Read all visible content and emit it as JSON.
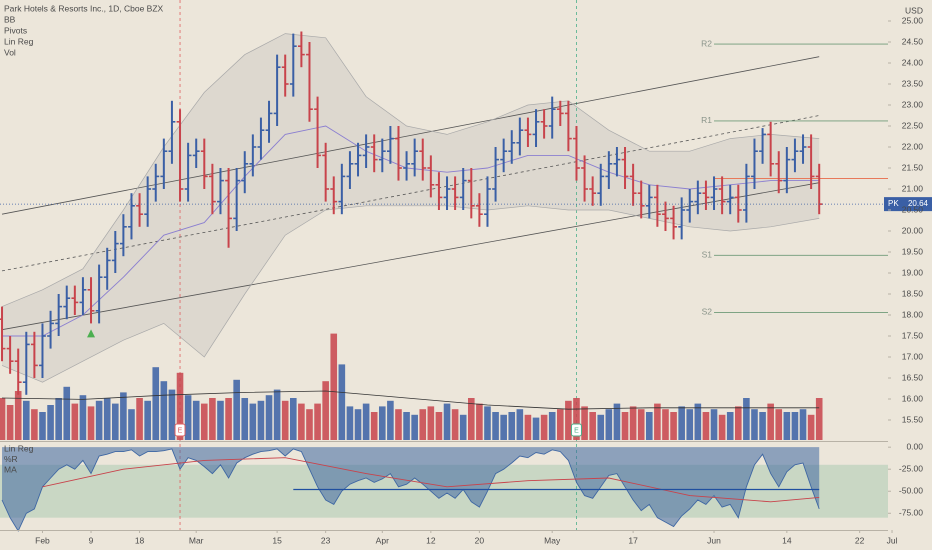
{
  "chart_data": {
    "type": "ohlc",
    "title": "Park Hotels & Resorts Inc., 1D, Cboe BZX",
    "indicators": [
      "BB",
      "Pivots",
      "Lin Reg",
      "Vol"
    ],
    "currency": "USD",
    "symbol_tag": "PK",
    "up_color": "#3a5fa5",
    "down_color": "#c8434b",
    "xlim": [
      -0.25,
      109.75
    ],
    "xticks": [
      {
        "value": 5,
        "label": "Feb"
      },
      {
        "value": 11,
        "label": "9"
      },
      {
        "value": 17,
        "label": "18"
      },
      {
        "value": 24,
        "label": "Mar"
      },
      {
        "value": 34,
        "label": "15"
      },
      {
        "value": 40,
        "label": "23"
      },
      {
        "value": 47,
        "label": "Apr"
      },
      {
        "value": 53,
        "label": "12"
      },
      {
        "value": 59,
        "label": "20"
      },
      {
        "value": 68,
        "label": "May"
      },
      {
        "value": 78,
        "label": "17"
      },
      {
        "value": 88,
        "label": "Jun"
      },
      {
        "value": 97,
        "label": "14"
      },
      {
        "value": 106,
        "label": "22"
      },
      {
        "value": 110,
        "label": "Jul"
      }
    ],
    "ylim": [
      15,
      25.5
    ],
    "yticks": [
      {
        "value": 25,
        "label": "25.00"
      },
      {
        "value": 24.5,
        "label": "24.50"
      },
      {
        "value": 24,
        "label": "24.00"
      },
      {
        "value": 23.5,
        "label": "23.50"
      },
      {
        "value": 23,
        "label": "23.00"
      },
      {
        "value": 22.5,
        "label": "22.50"
      },
      {
        "value": 22,
        "label": "22.00"
      },
      {
        "value": 21.5,
        "label": "21.50"
      },
      {
        "value": 21,
        "label": "21.00"
      },
      {
        "value": 20.5,
        "label": "20.50"
      },
      {
        "value": 20,
        "label": "20.00"
      },
      {
        "value": 19.5,
        "label": "19.50"
      },
      {
        "value": 19,
        "label": "19.00"
      },
      {
        "value": 18.5,
        "label": "18.50"
      },
      {
        "value": 18,
        "label": "18.00"
      },
      {
        "value": 17.5,
        "label": "17.50"
      },
      {
        "value": 17,
        "label": "17.00"
      },
      {
        "value": 16.5,
        "label": "16.50"
      },
      {
        "value": 16,
        "label": "16.00"
      },
      {
        "value": 15.5,
        "label": "15.50"
      }
    ],
    "open": [
      17.9,
      17.2,
      16.9,
      16.4,
      17.3,
      16.8,
      17.5,
      17.8,
      18.2,
      18.4,
      18.3,
      18.6,
      18.1,
      18.9,
      19.3,
      19.7,
      20.1,
      20.6,
      20.4,
      21.0,
      21.3,
      21.9,
      22.6,
      21.0,
      21.8,
      21.9,
      21.3,
      20.7,
      21.2,
      20.3,
      21.2,
      21.6,
      22.0,
      22.4,
      22.8,
      23.9,
      23.5,
      24.4,
      24.2,
      22.9,
      21.8,
      21.0,
      20.7,
      21.3,
      21.6,
      21.8,
      22.0,
      21.7,
      21.9,
      22.2,
      21.5,
      21.6,
      21.9,
      21.5,
      21.1,
      20.8,
      21.0,
      20.8,
      21.2,
      20.6,
      20.4,
      21.0,
      21.7,
      21.9,
      22.1,
      22.4,
      22.3,
      22.6,
      22.5,
      22.9,
      22.8,
      22.2,
      21.5,
      21.0,
      20.9,
      21.3,
      21.6,
      21.7,
      21.3,
      20.9,
      20.6,
      20.8,
      20.4,
      20.3,
      20.1,
      20.5,
      20.7,
      20.9,
      20.8,
      21.0,
      20.7,
      20.8,
      20.5,
      21.3,
      21.9,
      22.3,
      21.6,
      21.2,
      21.7,
      21.9,
      22.0,
      21.3
    ],
    "high": [
      18.2,
      17.5,
      17.2,
      17.6,
      17.6,
      17.8,
      18.1,
      18.5,
      18.7,
      18.7,
      18.9,
      18.9,
      19.2,
      19.6,
      20.0,
      20.4,
      20.9,
      20.9,
      21.3,
      21.6,
      22.2,
      23.1,
      22.9,
      22.1,
      22.2,
      22.2,
      21.6,
      21.5,
      21.5,
      21.5,
      21.9,
      22.3,
      22.7,
      23.1,
      24.2,
      24.2,
      24.7,
      24.75,
      24.5,
      23.2,
      22.1,
      21.3,
      21.6,
      21.9,
      22.1,
      22.3,
      22.3,
      22.2,
      22.5,
      22.5,
      21.9,
      22.2,
      22.2,
      21.8,
      21.4,
      21.3,
      21.3,
      21.5,
      21.5,
      20.9,
      21.3,
      22.0,
      22.2,
      22.4,
      22.7,
      22.7,
      22.9,
      22.9,
      23.2,
      23.1,
      23.1,
      22.5,
      21.8,
      21.3,
      21.6,
      21.9,
      22.0,
      22.0,
      21.6,
      21.2,
      21.1,
      21.1,
      20.7,
      20.6,
      20.8,
      21.0,
      21.2,
      21.2,
      21.3,
      21.3,
      21.1,
      21.1,
      21.6,
      22.2,
      22.45,
      22.6,
      21.9,
      22.0,
      22.2,
      22.3,
      22.3,
      21.6
    ],
    "low": [
      16.9,
      16.6,
      16.1,
      16.1,
      16.5,
      16.5,
      17.2,
      17.5,
      17.9,
      18.0,
      18.0,
      17.8,
      17.8,
      18.6,
      19.0,
      19.4,
      19.8,
      20.1,
      20.1,
      20.7,
      21.0,
      21.6,
      20.7,
      20.7,
      21.5,
      21.0,
      20.4,
      20.4,
      19.6,
      20.0,
      20.9,
      21.3,
      21.7,
      22.1,
      22.5,
      23.2,
      23.2,
      23.9,
      22.6,
      21.5,
      20.7,
      20.4,
      20.4,
      21.0,
      21.3,
      21.5,
      21.4,
      21.4,
      21.6,
      21.2,
      21.2,
      21.3,
      21.2,
      20.8,
      20.5,
      20.5,
      20.5,
      20.5,
      20.3,
      20.1,
      20.1,
      20.7,
      21.4,
      21.6,
      21.8,
      22.0,
      22.0,
      22.2,
      22.2,
      22.5,
      21.9,
      21.2,
      20.7,
      20.6,
      20.6,
      21.0,
      21.3,
      21.0,
      20.6,
      20.3,
      20.3,
      20.1,
      20.0,
      19.8,
      19.8,
      20.2,
      20.4,
      20.5,
      20.5,
      20.4,
      20.4,
      20.2,
      20.2,
      21.0,
      21.6,
      21.3,
      20.9,
      20.9,
      21.4,
      21.6,
      21.0,
      20.4
    ],
    "close": [
      17.2,
      16.9,
      16.4,
      17.3,
      16.8,
      17.5,
      17.8,
      18.2,
      18.4,
      18.3,
      18.6,
      18.1,
      18.9,
      19.3,
      19.7,
      20.1,
      20.6,
      20.4,
      21.0,
      21.3,
      21.9,
      22.6,
      21.0,
      21.8,
      21.9,
      21.3,
      20.7,
      21.2,
      20.3,
      21.2,
      21.6,
      22.0,
      22.4,
      22.8,
      23.9,
      23.5,
      24.4,
      24.2,
      22.9,
      21.8,
      21.0,
      20.7,
      21.3,
      21.6,
      21.8,
      22.0,
      21.7,
      21.9,
      22.2,
      21.5,
      21.6,
      21.9,
      21.5,
      21.1,
      20.8,
      21.0,
      20.8,
      21.2,
      20.6,
      20.4,
      21.0,
      21.7,
      21.9,
      22.1,
      22.4,
      22.3,
      22.6,
      22.5,
      22.9,
      22.8,
      22.2,
      21.5,
      21.0,
      20.9,
      21.3,
      21.6,
      21.7,
      21.3,
      20.9,
      20.6,
      20.8,
      20.4,
      20.3,
      20.1,
      20.5,
      20.7,
      20.9,
      20.8,
      21.0,
      20.7,
      20.8,
      20.5,
      21.3,
      21.9,
      22.3,
      21.6,
      21.2,
      21.7,
      21.9,
      22.0,
      21.3,
      20.64
    ],
    "volume": {
      "ylim": [
        0,
        10
      ],
      "values": [
        3.0,
        2.5,
        3.5,
        2.8,
        2.2,
        2.0,
        2.5,
        3.0,
        3.8,
        2.6,
        3.2,
        2.4,
        2.8,
        3.0,
        2.6,
        3.4,
        2.2,
        3.0,
        2.8,
        5.2,
        4.2,
        3.6,
        4.8,
        3.2,
        2.8,
        2.6,
        3.0,
        2.8,
        3.0,
        4.3,
        3.0,
        2.6,
        2.8,
        3.2,
        3.6,
        2.8,
        3.0,
        2.6,
        2.2,
        2.6,
        4.2,
        7.6,
        5.4,
        2.4,
        2.2,
        2.6,
        2.0,
        2.4,
        2.8,
        2.2,
        2.0,
        1.8,
        2.2,
        2.4,
        2.0,
        2.6,
        2.2,
        1.8,
        3.0,
        2.6,
        2.4,
        2.0,
        1.8,
        2.0,
        2.2,
        1.8,
        1.6,
        1.8,
        2.0,
        2.2,
        2.8,
        3.0,
        2.4,
        2.0,
        1.8,
        2.2,
        2.6,
        2.0,
        2.4,
        2.2,
        2.0,
        2.6,
        2.2,
        2.0,
        2.4,
        2.2,
        2.6,
        2.0,
        2.2,
        1.8,
        2.0,
        2.4,
        3.0,
        2.2,
        2.0,
        2.6,
        2.2,
        2.0,
        2.0,
        2.2,
        1.8,
        3.0
      ],
      "ma": {
        "x": [
          0,
          10,
          20,
          30,
          40,
          50,
          60,
          70,
          80,
          90,
          101
        ],
        "values": [
          3.0,
          2.9,
          3.2,
          3.4,
          3.5,
          3.0,
          2.5,
          2.2,
          2.3,
          2.3,
          2.3
        ],
        "color": "#333333"
      }
    },
    "bb": {
      "x": [
        0,
        5,
        10,
        15,
        20,
        25,
        30,
        35,
        40,
        45,
        50,
        55,
        60,
        65,
        70,
        75,
        80,
        85,
        90,
        95,
        101
      ],
      "upper": [
        18.2,
        18.6,
        19.1,
        20.5,
        22.0,
        23.3,
        24.2,
        24.7,
        24.6,
        23.2,
        22.5,
        22.3,
        22.6,
        23.0,
        23.1,
        22.4,
        21.9,
        21.9,
        22.2,
        22.3,
        22.2
      ],
      "basis": [
        17.5,
        17.5,
        18.0,
        18.9,
        19.9,
        20.2,
        21.3,
        22.3,
        22.5,
        21.9,
        21.5,
        21.4,
        21.5,
        21.8,
        21.8,
        21.4,
        21.1,
        21.0,
        21.1,
        21.2,
        21.2
      ],
      "lower": [
        16.8,
        16.4,
        16.9,
        17.4,
        17.8,
        17.0,
        18.5,
        19.9,
        20.5,
        20.6,
        20.6,
        20.6,
        20.5,
        20.6,
        20.5,
        20.5,
        20.3,
        20.1,
        20.0,
        20.1,
        20.3
      ],
      "band_color": "#a9a9a9",
      "basis_color": "#8b7fd0"
    },
    "lin_reg": {
      "x": [
        0,
        101
      ],
      "upper": [
        20.4,
        24.15
      ],
      "middle": [
        19.05,
        22.75
      ],
      "lower": [
        17.65,
        21.15
      ],
      "color": "#555555"
    },
    "pivots_from": 88,
    "pivots": [
      {
        "label": "R2",
        "value": 24.45
      },
      {
        "label": "R1",
        "value": 22.62
      },
      {
        "label": "S1",
        "value": 19.42
      },
      {
        "label": "S2",
        "value": 18.06
      }
    ],
    "pivot_color": "#6f9a78",
    "level": 21.25,
    "level_color": "#e8795a",
    "events": [
      {
        "index": 22,
        "label": "E",
        "color": "#e06060"
      },
      {
        "index": 71,
        "label": "E",
        "color": "#4caf8a"
      }
    ],
    "signals": [
      11
    ],
    "signal_color": "#4caf50",
    "oscillator": {
      "labels": [
        "Lin Reg",
        "%R",
        "MA"
      ],
      "ylim": [
        -94,
        7
      ],
      "yticks": [
        {
          "value": 0,
          "label": "0.00"
        },
        {
          "value": -25,
          "label": "-25.00"
        },
        {
          "value": -50,
          "label": "-50.00"
        },
        {
          "value": -75,
          "label": "-75.00"
        }
      ],
      "band": [
        -80,
        -20
      ],
      "values": [
        -60,
        -80,
        -95,
        -75,
        -70,
        -45,
        -35,
        -25,
        -20,
        -25,
        -15,
        -30,
        -10,
        -8,
        -5,
        -5,
        -3,
        -10,
        -5,
        -5,
        -4,
        -2,
        -25,
        -12,
        -15,
        -22,
        -30,
        -20,
        -35,
        -18,
        -12,
        -8,
        -5,
        -4,
        -2,
        -10,
        -2,
        -5,
        -25,
        -45,
        -60,
        -65,
        -50,
        -42,
        -38,
        -35,
        -40,
        -36,
        -30,
        -45,
        -42,
        -35,
        -42,
        -50,
        -58,
        -52,
        -58,
        -48,
        -62,
        -68,
        -50,
        -30,
        -25,
        -18,
        -10,
        -12,
        -6,
        -8,
        -3,
        -5,
        -15,
        -40,
        -55,
        -58,
        -45,
        -32,
        -30,
        -45,
        -60,
        -72,
        -65,
        -80,
        -85,
        -90,
        -78,
        -70,
        -60,
        -65,
        -55,
        -68,
        -65,
        -80,
        -45,
        -20,
        -8,
        -30,
        -45,
        -28,
        -20,
        -18,
        -45,
        -70
      ],
      "color": "#3f67a3",
      "ma": {
        "x": [
          5,
          15,
          25,
          35,
          45,
          55,
          65,
          75,
          85,
          95,
          101
        ],
        "values": [
          -45,
          -25,
          -15,
          -12,
          -30,
          -45,
          -38,
          -35,
          -55,
          -62,
          -57
        ],
        "color": "#c8434b"
      },
      "lin_reg": {
        "x": [
          36,
          101
        ],
        "values": [
          -48,
          -48
        ],
        "color": "#1f4fa0"
      }
    }
  }
}
